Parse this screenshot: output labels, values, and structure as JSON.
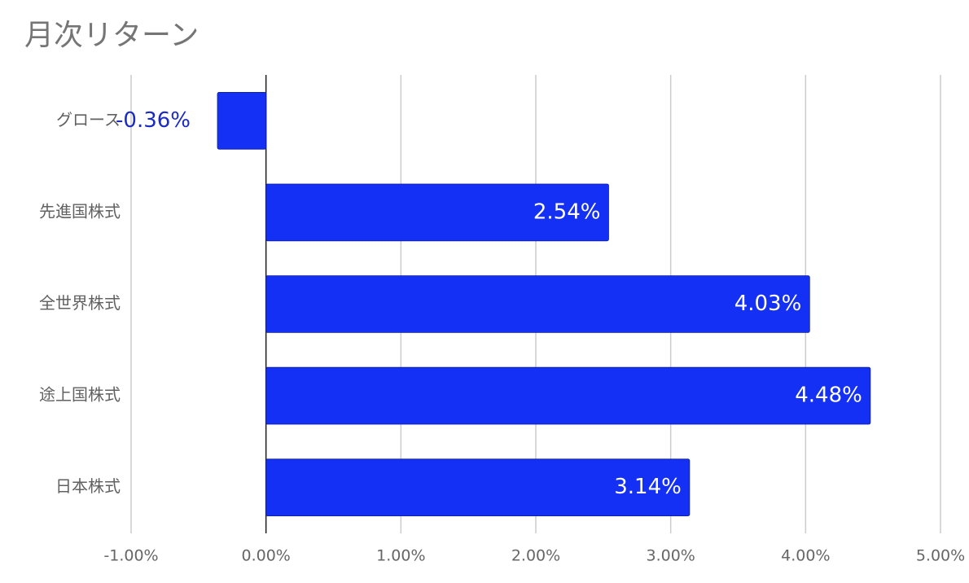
{
  "chart_data": {
    "type": "hbar",
    "title": "月次リターン",
    "categories": [
      "グロース",
      "先進国株式",
      "全世界株式",
      "途上国株式",
      "日本株式"
    ],
    "values": [
      -0.36,
      2.54,
      4.03,
      4.48,
      3.14
    ],
    "value_labels": [
      "-0.36%",
      "2.54%",
      "4.03%",
      "4.48%",
      "3.14%"
    ],
    "color": "#1530f5",
    "xlim": [
      -1,
      5
    ],
    "xticks": [
      {
        "value": -1,
        "label": "-1.00%"
      },
      {
        "value": 0,
        "label": "0.00%"
      },
      {
        "value": 1,
        "label": "1.00%"
      },
      {
        "value": 2,
        "label": "2.00%"
      },
      {
        "value": 3,
        "label": "3.00%"
      },
      {
        "value": 4,
        "label": "4.00%"
      },
      {
        "value": 5,
        "label": "5.00%"
      }
    ],
    "grid": true
  }
}
